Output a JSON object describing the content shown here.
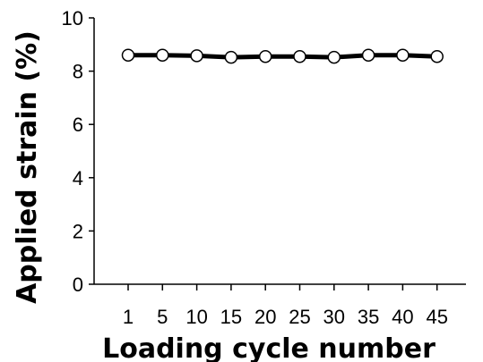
{
  "chart_data": {
    "type": "line",
    "title": "",
    "xlabel": "Loading cycle number",
    "ylabel": "Applied strain (%)",
    "categories": [
      "1",
      "5",
      "10",
      "15",
      "20",
      "25",
      "30",
      "35",
      "40",
      "45"
    ],
    "series": [
      {
        "values": [
          8.6,
          8.6,
          8.58,
          8.52,
          8.55,
          8.55,
          8.52,
          8.6,
          8.6,
          8.55
        ]
      }
    ],
    "ylim": [
      0,
      10
    ],
    "yticks": [
      "0",
      "2",
      "4",
      "6",
      "8",
      "10"
    ],
    "grid": false,
    "legend": "none",
    "colors": {
      "line": "#000000",
      "marker_fill": "#ffffff"
    }
  }
}
